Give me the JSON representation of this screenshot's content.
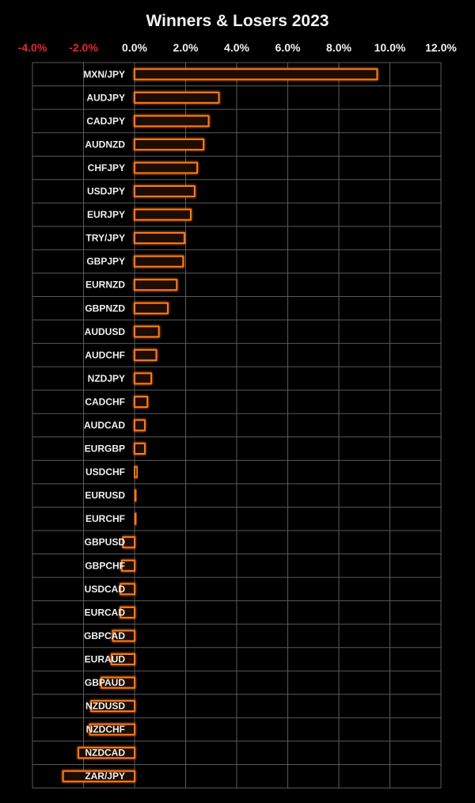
{
  "chart_data": {
    "type": "bar",
    "orientation": "horizontal",
    "title": "Winners & Losers 2023",
    "xlabel": "",
    "ylabel": "",
    "xlim": [
      -4.0,
      12.0
    ],
    "x_ticks": [
      "-4.0%",
      "-2.0%",
      "0.0%",
      "2.0%",
      "4.0%",
      "6.0%",
      "8.0%",
      "10.0%",
      "12.0%"
    ],
    "x_tick_values": [
      -4,
      -2,
      0,
      2,
      4,
      6,
      8,
      10,
      12
    ],
    "grid": true,
    "legend": "none",
    "colors": {
      "background": "#000000",
      "bar_edge": "#ff7a1a",
      "bar_fill": "#1a0800",
      "grid": "#5a5a5a",
      "negative_tick": "#e8262e",
      "positive_tick": "#f0f0f0",
      "text": "#f0f0f0"
    },
    "categories": [
      "MXN/JPY",
      "AUDJPY",
      "CADJPY",
      "AUDNZD",
      "CHFJPY",
      "USDJPY",
      "EURJPY",
      "TRY/JPY",
      "GBPJPY",
      "EURNZD",
      "GBPNZD",
      "AUDUSD",
      "AUDCHF",
      "NZDJPY",
      "CADCHF",
      "AUDCAD",
      "EURGBP",
      "USDCHF",
      "EURUSD",
      "EURCHF",
      "GBPUSD",
      "GBPCHF",
      "USDCAD",
      "EURCAD",
      "GBPCAD",
      "EURAUD",
      "GBPAUD",
      "NZDUSD",
      "NZDCHF",
      "NZDCAD",
      "ZAR/JPY"
    ],
    "values": [
      9.5,
      3.3,
      2.9,
      2.7,
      2.45,
      2.35,
      2.2,
      1.95,
      1.9,
      1.65,
      1.3,
      0.95,
      0.85,
      0.65,
      0.5,
      0.4,
      0.4,
      0.1,
      0.05,
      0.05,
      -0.45,
      -0.5,
      -0.55,
      -0.55,
      -0.85,
      -0.9,
      -1.3,
      -1.7,
      -1.75,
      -2.2,
      -2.8
    ]
  }
}
